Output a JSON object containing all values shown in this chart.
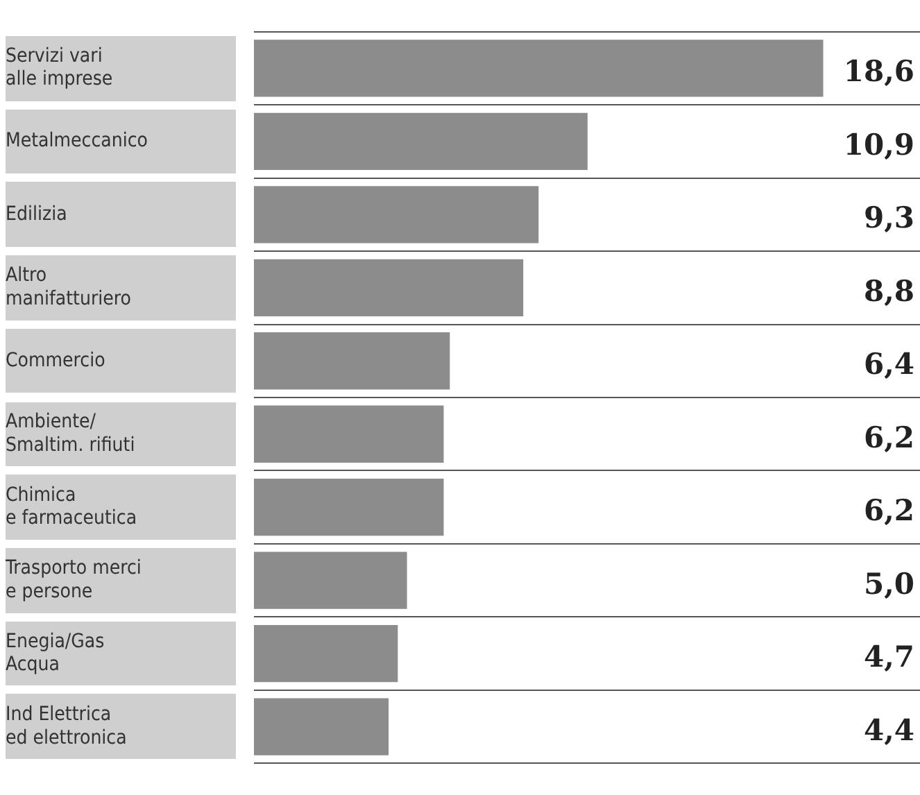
{
  "chart_data": {
    "type": "bar",
    "orientation": "horizontal",
    "categories": [
      "Servizi vari\nalle imprese",
      "Metalmeccanico",
      "Edilizia",
      "Altro\nmanifatturiero",
      "Commercio",
      "Ambiente/\nSmaltim. rifiuti",
      "Chimica\ne farmaceutica",
      "Trasporto merci\ne persone",
      "Enegia/Gas\nAcqua",
      "Ind Elettrica\ned elettronica"
    ],
    "values": [
      18.6,
      10.9,
      9.3,
      8.8,
      6.4,
      6.2,
      6.2,
      5.0,
      4.7,
      4.4
    ],
    "value_labels": [
      "18,6",
      "10,9",
      "9,3",
      "8,8",
      "6,4",
      "6,2",
      "6,2",
      "5,0",
      "4,7",
      "4,4"
    ],
    "color": "#8c8c8c",
    "grid": "y"
  }
}
